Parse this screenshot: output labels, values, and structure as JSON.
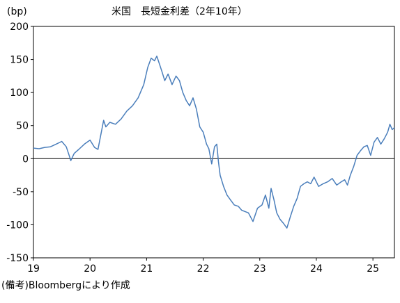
{
  "chart_data": {
    "type": "line",
    "title": "米国　長短金利差（2年10年）",
    "ylabel": "(bp)",
    "xlabel": "",
    "ylim": [
      -150,
      200
    ],
    "xlim": [
      2019.0,
      2025.38
    ],
    "yticks": [
      200,
      150,
      100,
      50,
      0,
      -50,
      -100,
      -150
    ],
    "xticks": [
      {
        "value": 2019,
        "label": "19"
      },
      {
        "value": 2020,
        "label": "20"
      },
      {
        "value": 2021,
        "label": "21"
      },
      {
        "value": 2022,
        "label": "22"
      },
      {
        "value": 2023,
        "label": "23"
      },
      {
        "value": 2024,
        "label": "24"
      },
      {
        "value": 2025,
        "label": "25"
      }
    ],
    "grid": false,
    "zero_line": true,
    "series": [
      {
        "color": "#4a7ebb",
        "x": [
          2019.0,
          2019.1,
          2019.2,
          2019.3,
          2019.4,
          2019.5,
          2019.58,
          2019.63,
          2019.66,
          2019.72,
          2019.8,
          2019.9,
          2020.0,
          2020.08,
          2020.14,
          2020.2,
          2020.24,
          2020.28,
          2020.35,
          2020.45,
          2020.55,
          2020.65,
          2020.75,
          2020.85,
          2020.95,
          2021.02,
          2021.08,
          2021.14,
          2021.18,
          2021.22,
          2021.27,
          2021.32,
          2021.38,
          2021.45,
          2021.52,
          2021.58,
          2021.64,
          2021.7,
          2021.76,
          2021.82,
          2021.88,
          2021.94,
          2022.0,
          2022.06,
          2022.1,
          2022.15,
          2022.2,
          2022.24,
          2022.27,
          2022.3,
          2022.36,
          2022.42,
          2022.48,
          2022.55,
          2022.62,
          2022.68,
          2022.74,
          2022.8,
          2022.88,
          2022.96,
          2023.04,
          2023.1,
          2023.16,
          2023.2,
          2023.25,
          2023.3,
          2023.36,
          2023.42,
          2023.48,
          2023.54,
          2023.6,
          2023.66,
          2023.72,
          2023.78,
          2023.84,
          2023.9,
          2023.96,
          2024.04,
          2024.12,
          2024.2,
          2024.28,
          2024.36,
          2024.44,
          2024.5,
          2024.55,
          2024.6,
          2024.66,
          2024.72,
          2024.78,
          2024.84,
          2024.9,
          2024.96,
          2025.02,
          2025.08,
          2025.14,
          2025.2,
          2025.26,
          2025.3,
          2025.34,
          2025.38
        ],
        "y": [
          16,
          15,
          17,
          18,
          22,
          26,
          18,
          5,
          -3,
          8,
          14,
          22,
          28,
          17,
          14,
          40,
          58,
          48,
          55,
          52,
          60,
          72,
          80,
          92,
          112,
          138,
          152,
          148,
          155,
          145,
          132,
          118,
          128,
          112,
          125,
          118,
          100,
          88,
          80,
          92,
          75,
          48,
          40,
          22,
          15,
          -8,
          18,
          22,
          -5,
          -25,
          -42,
          -55,
          -62,
          -70,
          -72,
          -78,
          -80,
          -82,
          -95,
          -75,
          -70,
          -55,
          -75,
          -45,
          -62,
          -82,
          -92,
          -98,
          -105,
          -88,
          -72,
          -60,
          -42,
          -38,
          -35,
          -38,
          -28,
          -42,
          -38,
          -35,
          -30,
          -40,
          -35,
          -32,
          -40,
          -25,
          -12,
          5,
          12,
          18,
          20,
          5,
          25,
          32,
          22,
          30,
          40,
          52,
          44,
          47
        ]
      }
    ]
  },
  "source_note": "(備考)Bloombergにより作成"
}
